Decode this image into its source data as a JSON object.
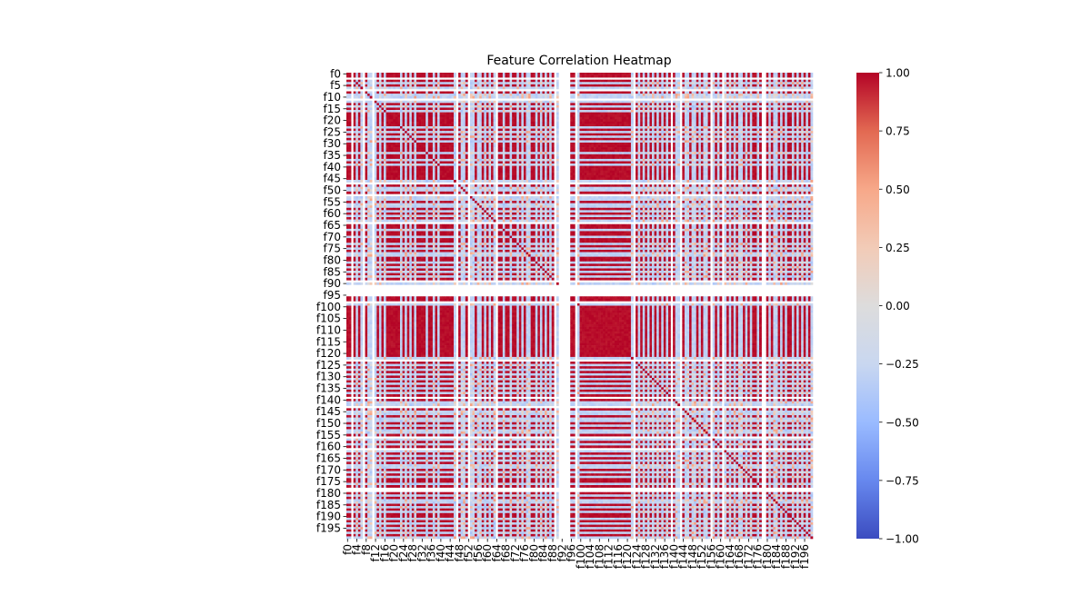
{
  "chart_data": {
    "type": "heatmap",
    "title": "Feature Correlation Heatmap",
    "n_features": 200,
    "feature_prefix": "f",
    "y_tick_labels": [
      "f0",
      "f5",
      "f10",
      "f15",
      "f20",
      "f25",
      "f30",
      "f35",
      "f40",
      "f45",
      "f50",
      "f55",
      "f60",
      "f65",
      "f70",
      "f75",
      "f80",
      "f85",
      "f90",
      "f95",
      "f100",
      "f105",
      "f110",
      "f115",
      "f120",
      "f125",
      "f130",
      "f135",
      "f140",
      "f145",
      "f150",
      "f155",
      "f160",
      "f165",
      "f170",
      "f175",
      "f180",
      "f185",
      "f190",
      "f195"
    ],
    "x_tick_labels": [
      "f0",
      "f4",
      "f8",
      "f12",
      "f16",
      "f20",
      "f24",
      "f28",
      "f32",
      "f36",
      "f40",
      "f44",
      "f48",
      "f52",
      "f56",
      "f60",
      "f64",
      "f68",
      "f72",
      "f76",
      "f80",
      "f84",
      "f88",
      "f92",
      "f96",
      "f100",
      "f104",
      "f108",
      "f112",
      "f116",
      "f120",
      "f124",
      "f128",
      "f132",
      "f136",
      "f140",
      "f144",
      "f148",
      "f152",
      "f156",
      "f160",
      "f164",
      "f168",
      "f172",
      "f176",
      "f180",
      "f184",
      "f188",
      "f192",
      "f196"
    ],
    "colorbar": {
      "min": -1.0,
      "max": 1.0,
      "tick_values": [
        -1.0,
        -0.75,
        -0.5,
        -0.25,
        0.0,
        0.25,
        0.5,
        0.75,
        1.0
      ],
      "tick_labels": [
        "−1.00",
        "−0.75",
        "−0.50",
        "−0.25",
        "0.00",
        "0.25",
        "0.50",
        "0.75",
        "1.00"
      ],
      "colormap": "coolwarm",
      "colormap_stops": [
        "#3b4cc0",
        "#6788ee",
        "#9abbff",
        "#c9d7f0",
        "#dddcdc",
        "#f2cbb7",
        "#f7a889",
        "#e26952",
        "#b40426"
      ]
    },
    "blank_features": [
      2,
      7,
      11,
      47,
      52,
      64,
      89,
      91,
      92,
      93,
      94,
      95,
      98,
      123,
      139,
      143,
      156,
      161,
      178,
      179
    ],
    "cluster_a_features": [
      0,
      1,
      3,
      5,
      8,
      13,
      15,
      17,
      18,
      19,
      20,
      21,
      22,
      24,
      26,
      28,
      30,
      31,
      32,
      33,
      35,
      36,
      38,
      40,
      41,
      42,
      43,
      44,
      45,
      48,
      51,
      55,
      58,
      60,
      62,
      65,
      66,
      68,
      69,
      71,
      72,
      74,
      76,
      79,
      80,
      82,
      84,
      86,
      88,
      96,
      97,
      100,
      101,
      102,
      103,
      104,
      105,
      106,
      107,
      108,
      109,
      110,
      111,
      112,
      113,
      114,
      115,
      116,
      117,
      118,
      119,
      120,
      121,
      124,
      126,
      128,
      130,
      132,
      134,
      136,
      138,
      140,
      144,
      147,
      150,
      152,
      155,
      158,
      160,
      163,
      165,
      167,
      170,
      172,
      174,
      175,
      177,
      180,
      182,
      185,
      187,
      189,
      190,
      192,
      194,
      196,
      198
    ],
    "within_cluster_r": 0.98,
    "cross_cluster_r": -0.3,
    "other_r": 0.05,
    "diagonal_r": 1.0
  }
}
